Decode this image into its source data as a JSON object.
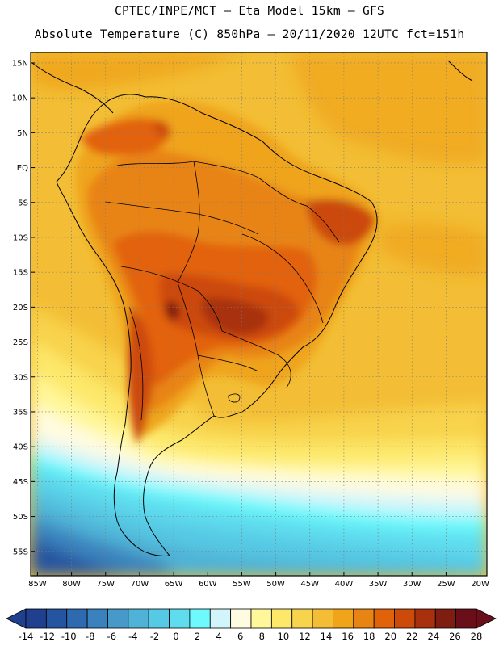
{
  "header": {
    "line1": "CPTEC/INPE/MCT –  Eta Model 15km – GFS",
    "line2": "Absolute Temperature (C) 850hPa – 20/11/2020 12UTC fct=151h"
  },
  "map": {
    "lon_range": [
      -86,
      -19
    ],
    "lat_range": [
      -58.5,
      16.5
    ],
    "lat_ticks": [
      "15N",
      "10N",
      "5N",
      "EQ",
      "5S",
      "10S",
      "15S",
      "20S",
      "25S",
      "30S",
      "35S",
      "40S",
      "45S",
      "50S",
      "55S"
    ],
    "lon_ticks": [
      "85W",
      "80W",
      "75W",
      "70W",
      "65W",
      "60W",
      "55W",
      "50W",
      "45W",
      "40W",
      "35W",
      "30W",
      "25W",
      "20W"
    ],
    "grid": true,
    "variable": "Absolute Temperature 850hPa",
    "unit": "C"
  },
  "colorbar": {
    "labels": [
      "-14",
      "-12",
      "-10",
      "-8",
      "-6",
      "-4",
      "-2",
      "0",
      "2",
      "4",
      "6",
      "8",
      "10",
      "12",
      "14",
      "16",
      "18",
      "20",
      "22",
      "24",
      "26",
      "28"
    ],
    "colors": [
      "#1f3f8f",
      "#2554a0",
      "#2d6aaf",
      "#3a82bd",
      "#4799c9",
      "#4fb2d6",
      "#56c9e4",
      "#5fdcee",
      "#6cfafc",
      "#d2f5fb",
      "#fffbe0",
      "#fff79a",
      "#fde86a",
      "#f8d34c",
      "#f3be35",
      "#efa41a",
      "#e88412",
      "#e2620a",
      "#cc4a0a",
      "#a8300c",
      "#7f1e10",
      "#6a0f1a"
    ]
  }
}
